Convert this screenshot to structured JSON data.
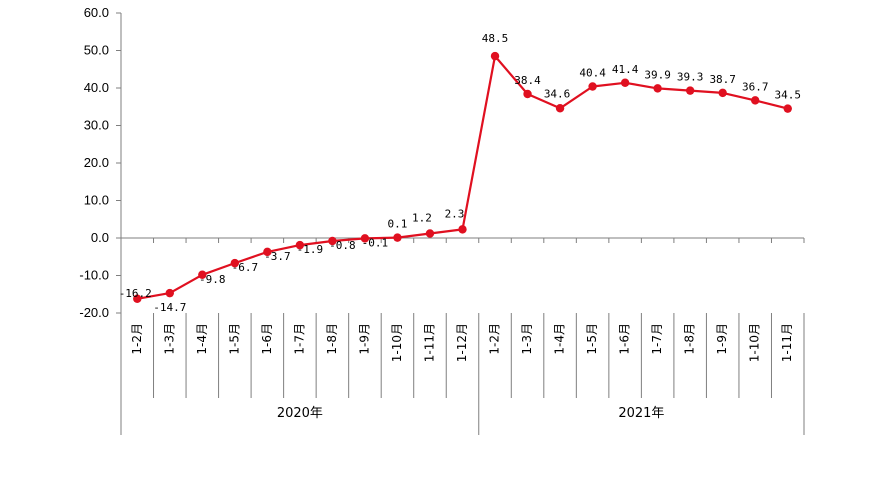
{
  "chart_data": {
    "type": "line",
    "title": "",
    "xlabel": "",
    "ylabel": "",
    "ylim": [
      -20,
      60
    ],
    "yticks": [
      "60.0",
      "50.0",
      "40.0",
      "30.0",
      "20.0",
      "10.0",
      "0.0",
      "-10.0",
      "-20.0"
    ],
    "ytick_values": [
      60,
      50,
      40,
      30,
      20,
      10,
      0,
      -10,
      -20
    ],
    "categories": [
      "1-2月",
      "1-3月",
      "1-4月",
      "1-5月",
      "1-6月",
      "1-7月",
      "1-8月",
      "1-9月",
      "1-10月",
      "1-11月",
      "1-12月",
      "1-2月",
      "1-3月",
      "1-4月",
      "1-5月",
      "1-6月",
      "1-7月",
      "1-8月",
      "1-9月",
      "1-10月",
      "1-11月"
    ],
    "groups": [
      {
        "label": "2020年",
        "count": 11
      },
      {
        "label": "2021年",
        "count": 10
      }
    ],
    "series": [
      {
        "values": [
          -16.2,
          -14.7,
          -9.8,
          -6.7,
          -3.7,
          -1.9,
          -0.8,
          -0.1,
          0.1,
          1.2,
          2.3,
          48.5,
          38.4,
          34.6,
          40.4,
          41.4,
          39.9,
          39.3,
          38.7,
          36.7,
          34.5
        ],
        "labels": [
          "-16.2",
          "-14.7",
          "-9.8",
          "-6.7",
          "-3.7",
          "-1.9",
          "-0.8",
          "-0.1",
          "0.1",
          "1.2",
          "2.3",
          "48.5",
          "38.4",
          "34.6",
          "40.4",
          "41.4",
          "39.9",
          "39.3",
          "38.7",
          "36.7",
          "34.5"
        ],
        "color": "#e01020"
      }
    ],
    "grid": false,
    "legend": "none"
  }
}
